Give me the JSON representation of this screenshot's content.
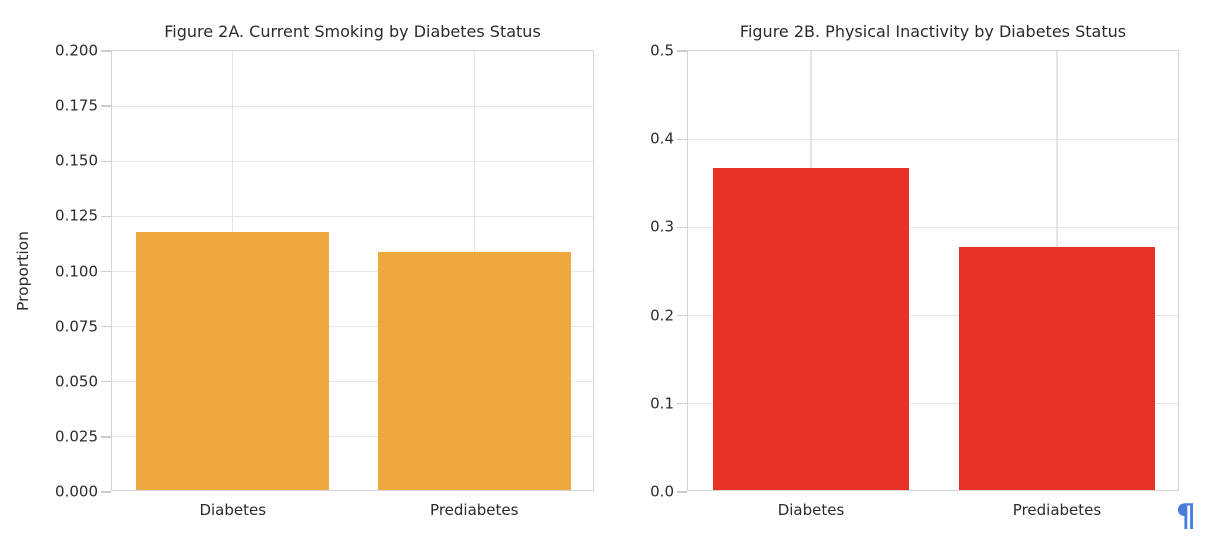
{
  "page": {
    "pilcrow_mark": "¶",
    "pilcrow_color": "#4a7de0",
    "background_color": "#ffffff"
  },
  "style": {
    "grid_color": "#e5e5e5",
    "spine_color": "#d4d4d4",
    "tick_color": "#cccccc",
    "text_color": "#2b2b2b"
  },
  "chart_data": [
    {
      "type": "bar",
      "title": "Figure 2A. Current Smoking by Diabetes Status",
      "categories": [
        "Diabetes",
        "Prediabetes"
      ],
      "values": [
        0.117,
        0.108
      ],
      "xlabel": "",
      "ylabel": "Proportion",
      "ylim": [
        0,
        0.2
      ],
      "yticks": {
        "values": [
          0,
          0.025,
          0.05,
          0.075,
          0.1,
          0.125,
          0.15,
          0.175,
          0.2
        ],
        "labels": [
          "0.000",
          "0.025",
          "0.050",
          "0.075",
          "0.100",
          "0.125",
          "0.150",
          "0.175",
          "0.200"
        ]
      },
      "bar_color": "#efa83d",
      "bar_width_fraction": 0.8,
      "grid": true,
      "legend": null
    },
    {
      "type": "bar",
      "title": "Figure 2B. Physical Inactivity by Diabetes Status",
      "categories": [
        "Diabetes",
        "Prediabetes"
      ],
      "values": [
        0.365,
        0.276
      ],
      "xlabel": "",
      "ylabel": "",
      "ylim": [
        0,
        0.5
      ],
      "yticks": {
        "values": [
          0,
          0.1,
          0.2,
          0.3,
          0.4,
          0.5
        ],
        "labels": [
          "0.0",
          "0.1",
          "0.2",
          "0.3",
          "0.4",
          "0.5"
        ]
      },
      "bar_color": "#e73227",
      "bar_width_fraction": 0.8,
      "grid": true,
      "legend": null
    }
  ]
}
